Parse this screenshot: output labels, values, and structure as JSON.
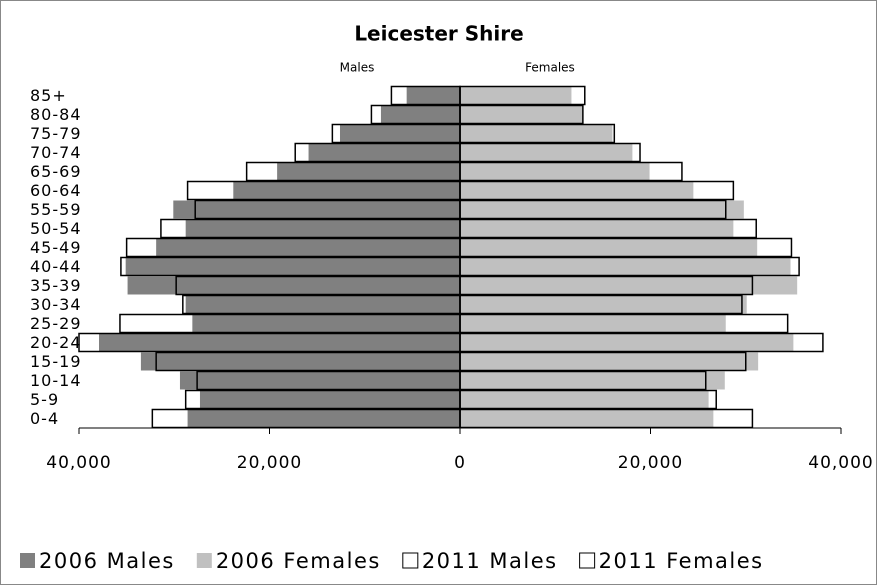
{
  "chart_data": {
    "type": "pyramid",
    "title": "Leicester Shire",
    "side_labels": [
      "Males",
      "Females"
    ],
    "categories": [
      "0-4",
      "5-9",
      "10-14",
      "15-19",
      "20-24",
      "25-29",
      "30-34",
      "35-39",
      "40-44",
      "45-49",
      "50-54",
      "55-59",
      "60-64",
      "65-69",
      "70-74",
      "75-79",
      "80-84",
      "85+"
    ],
    "series": [
      {
        "name": "2006 Males",
        "color": "#808080",
        "values": [
          -28600,
          -27300,
          -29400,
          -33500,
          -37900,
          -28100,
          -28800,
          -34900,
          -35100,
          -31900,
          -28800,
          -30100,
          -23800,
          -19200,
          -15900,
          -12600,
          -8300,
          -5600
        ]
      },
      {
        "name": "2006 Females",
        "color": "#c0c0c0",
        "values": [
          26600,
          26100,
          27800,
          31300,
          35000,
          27900,
          30100,
          35400,
          34700,
          31200,
          28700,
          29800,
          24500,
          19900,
          18100,
          16000,
          12900,
          11700
        ]
      },
      {
        "name": "2011 Males",
        "color": "#ffffff",
        "values": [
          -32300,
          -28800,
          -27600,
          -31900,
          -40000,
          -35700,
          -29100,
          -29800,
          -35600,
          -35000,
          -31400,
          -27800,
          -28600,
          -22400,
          -17300,
          -13400,
          -9300,
          -7200
        ]
      },
      {
        "name": "2011 Females",
        "color": "#ffffff",
        "values": [
          30700,
          26900,
          25800,
          30000,
          38100,
          34400,
          29600,
          30700,
          35600,
          34800,
          31100,
          27900,
          28700,
          23300,
          18900,
          16200,
          12900,
          13100
        ]
      }
    ],
    "xlim": [
      -40000,
      40000
    ],
    "xticks": [
      {
        "value": -40000,
        "label": "40,000"
      },
      {
        "value": -20000,
        "label": "20,000"
      },
      0,
      {
        "value": 20000,
        "label": "20,000"
      },
      {
        "value": 40000,
        "label": "40,000"
      }
    ],
    "legend": "bottom"
  }
}
